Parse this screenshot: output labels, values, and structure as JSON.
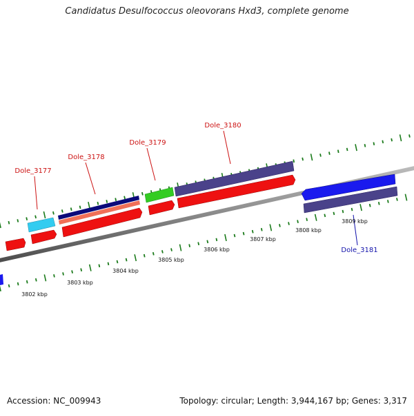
{
  "title": "Candidatus Desulfococcus oleovorans Hxd3, complete genome",
  "footer": {
    "accession": "Accession: NC_009943",
    "topology": "Topology: circular; Length: 3,944,167 bp; Genes: 3,317"
  },
  "colors": {
    "red_gene": "#ee1111",
    "cyan_gene": "#33ccf0",
    "navy_gene": "#0a0a7a",
    "salmon_gene": "#f07058",
    "green_gene": "#33cc22",
    "purple_gene": "#4a428a",
    "blue_gene": "#1a1aee",
    "backbone": "#8a8a8a",
    "tick": "#1a7a1a",
    "label_forward": "#cc1111",
    "label_reverse": "#1111aa"
  },
  "scale_labels": [
    "3802 kbp",
    "3803 kbp",
    "3804 kbp",
    "3805 kbp",
    "3806 kbp",
    "3807 kbp",
    "3808 kbp",
    "3809 kbp"
  ],
  "gene_labels": [
    {
      "name": "Dole_3177",
      "strand": "forward"
    },
    {
      "name": "Dole_3178",
      "strand": "forward"
    },
    {
      "name": "Dole_3179",
      "strand": "forward"
    },
    {
      "name": "Dole_3180",
      "strand": "forward"
    },
    {
      "name": "Dole_3181",
      "strand": "reverse"
    }
  ]
}
